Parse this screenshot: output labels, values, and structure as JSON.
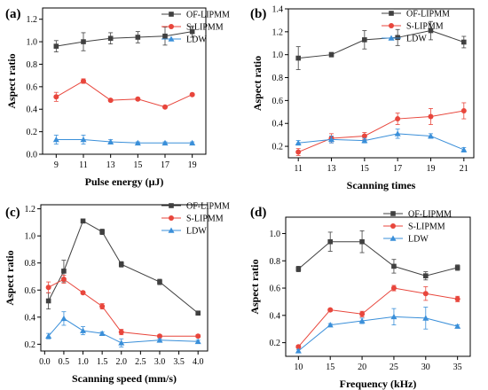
{
  "figure": {
    "panels": [
      "(a)",
      "(b)",
      "(c)",
      "(d)"
    ]
  },
  "chart_data": [
    {
      "type": "line",
      "panel": "(a)",
      "xlabel": "Pulse energy (μJ)",
      "ylabel": "Aspect ratio",
      "xlim": [
        8,
        20
      ],
      "ylim": [
        0,
        1.3
      ],
      "xticks": [
        9,
        11,
        13,
        15,
        17,
        19
      ],
      "xtick_labels": [
        "9",
        "11",
        "13",
        "15",
        "17",
        "19"
      ],
      "yticks": [
        0.0,
        0.2,
        0.4,
        0.6,
        0.8,
        1.0,
        1.2
      ],
      "ytick_labels": [
        "0.0",
        "0.2",
        "0.4",
        "0.6",
        "0.8",
        "1.0",
        "1.2"
      ],
      "legend_position": "top-right",
      "grid": false,
      "x": [
        9,
        11,
        13,
        15,
        17,
        19
      ],
      "series": [
        {
          "name": "OF-LIPMM",
          "marker": "square",
          "color": "#404040",
          "values": [
            0.96,
            1.0,
            1.03,
            1.04,
            1.05,
            1.09
          ],
          "errors": [
            0.05,
            0.08,
            0.05,
            0.05,
            0.08,
            0.05
          ]
        },
        {
          "name": "S-LIPMM",
          "marker": "circle",
          "color": "#e8463c",
          "values": [
            0.51,
            0.65,
            0.48,
            0.49,
            0.42,
            0.53
          ],
          "errors": [
            0.04,
            0.02,
            0.01,
            0.01,
            0.01,
            0.01
          ]
        },
        {
          "name": "LDW",
          "marker": "triangle",
          "color": "#3a8fd9",
          "values": [
            0.13,
            0.13,
            0.11,
            0.1,
            0.1,
            0.1
          ],
          "errors": [
            0.04,
            0.04,
            0.02,
            0.01,
            0.01,
            0.01
          ]
        }
      ]
    },
    {
      "type": "line",
      "panel": "(b)",
      "xlabel": "Scanning times",
      "ylabel": "Aspect ratio",
      "xlim": [
        10.4,
        21.6
      ],
      "ylim": [
        0.1,
        1.4
      ],
      "xticks": [
        11,
        13,
        15,
        17,
        19,
        21
      ],
      "xtick_labels": [
        "11",
        "13",
        "15",
        "17",
        "19",
        "21"
      ],
      "yticks": [
        0.2,
        0.4,
        0.6,
        0.8,
        1.0,
        1.2,
        1.4
      ],
      "ytick_labels": [
        "0.2",
        "0.4",
        "0.6",
        "0.8",
        "1.0",
        "1.2",
        "1.4"
      ],
      "legend_position": "top-right",
      "grid": false,
      "x": [
        11,
        13,
        15,
        17,
        19,
        21
      ],
      "series": [
        {
          "name": "OF-LIPMM",
          "marker": "square",
          "color": "#404040",
          "values": [
            0.97,
            1.0,
            1.13,
            1.15,
            1.21,
            1.11
          ],
          "errors": [
            0.1,
            0.02,
            0.08,
            0.07,
            0.08,
            0.05
          ]
        },
        {
          "name": "S-LIPMM",
          "marker": "circle",
          "color": "#e8463c",
          "values": [
            0.15,
            0.27,
            0.29,
            0.44,
            0.46,
            0.51
          ],
          "errors": [
            0.03,
            0.04,
            0.03,
            0.05,
            0.07,
            0.07
          ]
        },
        {
          "name": "LDW",
          "marker": "triangle",
          "color": "#3a8fd9",
          "values": [
            0.23,
            0.26,
            0.25,
            0.31,
            0.29,
            0.17
          ],
          "errors": [
            0.02,
            0.03,
            0.02,
            0.04,
            0.02,
            0.02
          ]
        }
      ]
    },
    {
      "type": "line",
      "panel": "(c)",
      "xlabel": "Scanning speed (mm/s)",
      "ylabel": "Aspect ratio",
      "xlim": [
        -0.1,
        4.25
      ],
      "ylim": [
        0.15,
        1.23
      ],
      "xticks": [
        0.0,
        0.5,
        1.0,
        1.5,
        2.0,
        2.5,
        3.0,
        3.5,
        4.0
      ],
      "xtick_labels": [
        "0.0",
        "0.5",
        "1.0",
        "1.5",
        "2.0",
        "2.5",
        "3.0",
        "3.5",
        "4.0"
      ],
      "yticks": [
        0.2,
        0.4,
        0.6,
        0.8,
        1.0,
        1.2
      ],
      "ytick_labels": [
        "0.2",
        "0.4",
        "0.6",
        "0.8",
        "1.0",
        "1.2"
      ],
      "legend_position": "top-right",
      "grid": false,
      "x": [
        0.1,
        0.5,
        1.0,
        1.5,
        2.0,
        3.0,
        4.0
      ],
      "series": [
        {
          "name": "OF-LIPMM",
          "marker": "square",
          "color": "#404040",
          "values": [
            0.52,
            0.74,
            1.11,
            1.03,
            0.79,
            0.66,
            0.43
          ],
          "errors": [
            0.06,
            0.08,
            0.01,
            0.02,
            0.02,
            0.02,
            0.01
          ]
        },
        {
          "name": "S-LIPMM",
          "marker": "circle",
          "color": "#e8463c",
          "values": [
            0.62,
            0.68,
            0.58,
            0.48,
            0.29,
            0.26,
            0.26
          ],
          "errors": [
            0.04,
            0.03,
            0.01,
            0.02,
            0.02,
            0.01,
            0.01
          ]
        },
        {
          "name": "LDW",
          "marker": "triangle",
          "color": "#3a8fd9",
          "values": [
            0.26,
            0.39,
            0.3,
            0.28,
            0.21,
            0.23,
            0.22
          ],
          "errors": [
            0.02,
            0.05,
            0.03,
            0.01,
            0.03,
            0.01,
            0.01
          ]
        }
      ]
    },
    {
      "type": "line",
      "panel": "(d)",
      "xlabel": "Frequency (kHz)",
      "ylabel": "Aspect ratio",
      "xlim": [
        8,
        37
      ],
      "ylim": [
        0.1,
        1.12
      ],
      "xticks": [
        10,
        15,
        20,
        25,
        30,
        35
      ],
      "xtick_labels": [
        "10",
        "15",
        "20",
        "25",
        "30",
        "35"
      ],
      "yticks": [
        0.2,
        0.4,
        0.6,
        0.8,
        1.0
      ],
      "ytick_labels": [
        "0.2",
        "0.4",
        "0.6",
        "0.8",
        "1.0"
      ],
      "legend_position": "top-right",
      "grid": false,
      "x": [
        10,
        15,
        20,
        25,
        30,
        35
      ],
      "series": [
        {
          "name": "OF-LIPMM",
          "marker": "square",
          "color": "#404040",
          "values": [
            0.74,
            0.94,
            0.94,
            0.76,
            0.69,
            0.75
          ],
          "errors": [
            0.02,
            0.07,
            0.08,
            0.05,
            0.03,
            0.02
          ]
        },
        {
          "name": "S-LIPMM",
          "marker": "circle",
          "color": "#e8463c",
          "values": [
            0.17,
            0.44,
            0.41,
            0.6,
            0.56,
            0.52
          ],
          "errors": [
            0.01,
            0.01,
            0.02,
            0.02,
            0.05,
            0.02
          ]
        },
        {
          "name": "LDW",
          "marker": "triangle",
          "color": "#3a8fd9",
          "values": [
            0.14,
            0.33,
            0.36,
            0.39,
            0.38,
            0.32
          ],
          "errors": [
            0.01,
            0.01,
            0.02,
            0.06,
            0.08,
            0.01
          ]
        }
      ]
    }
  ]
}
